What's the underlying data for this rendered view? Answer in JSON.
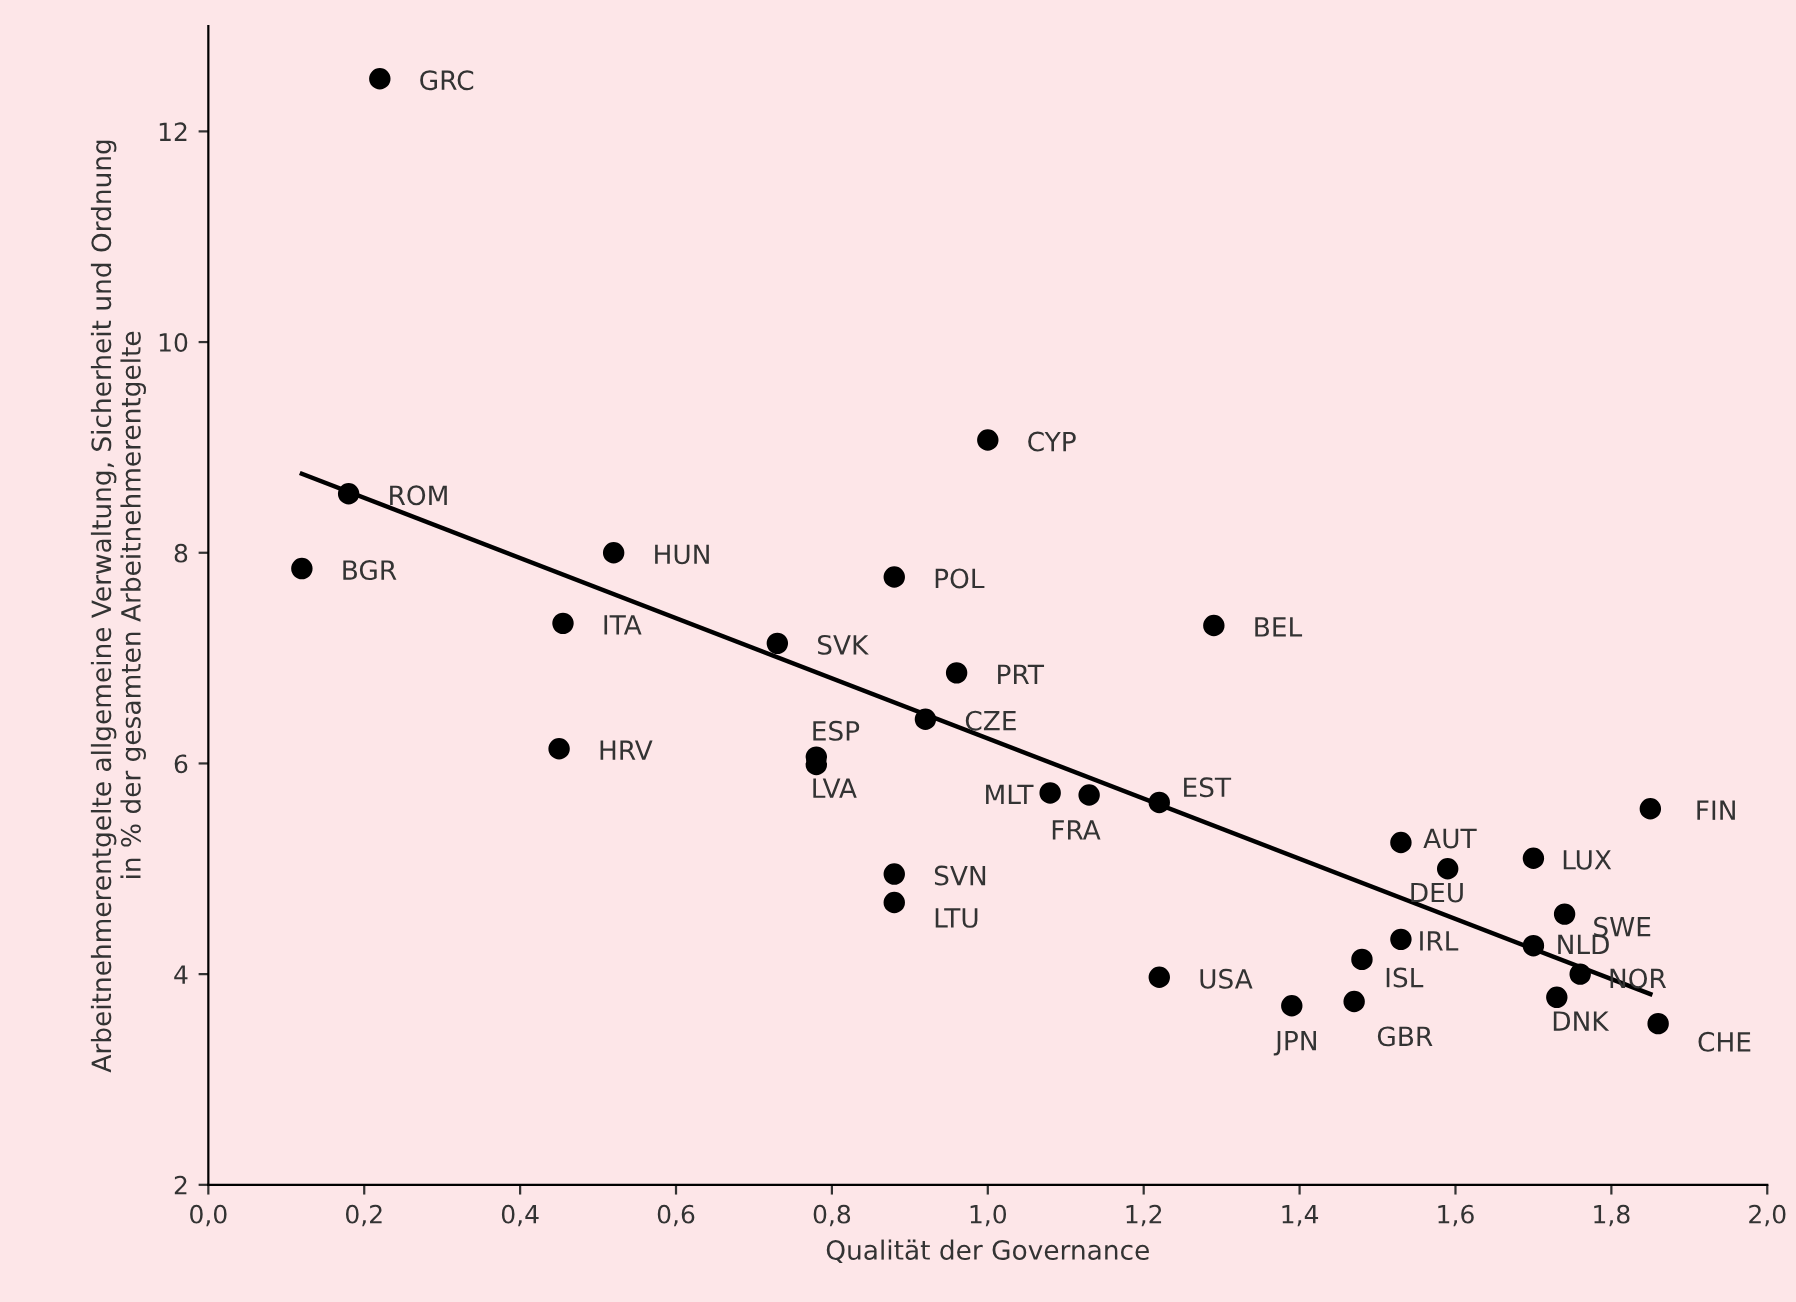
{
  "chart_data": {
    "type": "scatter",
    "xlabel": "Qualität der Governance",
    "ylabel": "Arbeitnehmerentgelte allgemeine Verwaltung, Sicherheit und Ordnung\nin % der gesamten Arbeitnehmerentgelte",
    "xlim": [
      0,
      2
    ],
    "xticks": [
      {
        "value": 0,
        "label": "0,0"
      },
      {
        "value": 0.2,
        "label": "0,2"
      },
      {
        "value": 0.4,
        "label": "0,4"
      },
      {
        "value": 0.6,
        "label": "0,6"
      },
      {
        "value": 0.8,
        "label": "0,8"
      },
      {
        "value": 1.0,
        "label": "1,0"
      },
      {
        "value": 1.2,
        "label": "1,2"
      },
      {
        "value": 1.4,
        "label": "1,4"
      },
      {
        "value": 1.6,
        "label": "1,6"
      },
      {
        "value": 1.8,
        "label": "1,8"
      },
      {
        "value": 2.0,
        "label": "2,0"
      }
    ],
    "ylim": [
      2,
      13
    ],
    "yticks": [
      2,
      4,
      6,
      8,
      10,
      12
    ],
    "grid": false,
    "series": [
      {
        "marker": "circle",
        "color": "#000000",
        "x": [
          0.22,
          0.18,
          0.12,
          0.52,
          0.88,
          0.73,
          0.96,
          0.92,
          1.29,
          1.0,
          0.45,
          0.455,
          0.78,
          0.78,
          1.08,
          1.13,
          1.22,
          0.88,
          0.88,
          1.22,
          1.39,
          1.47,
          1.48,
          1.53,
          1.53,
          1.59,
          1.7,
          1.74,
          1.7,
          1.76,
          1.73,
          1.85,
          1.86
        ],
        "values": [
          12.5,
          8.56,
          7.85,
          8.0,
          7.77,
          7.14,
          6.86,
          6.42,
          7.31,
          9.07,
          6.14,
          7.33,
          6.06,
          5.99,
          5.72,
          5.7,
          5.63,
          4.95,
          4.68,
          3.97,
          3.7,
          3.74,
          4.14,
          4.33,
          5.25,
          5.0,
          5.1,
          4.57,
          4.27,
          4.0,
          3.78,
          5.57,
          3.53
        ]
      },
      {
        "type": "line",
        "color": "#000000",
        "x": [
          0.12,
          1.85
        ],
        "values": [
          8.75,
          3.81
        ]
      }
    ],
    "annotations": [
      {
        "text": "GRC",
        "x": 0.22,
        "y": 12.5
      },
      {
        "text": "ROM",
        "x": 0.18,
        "y": 8.56
      },
      {
        "text": "BGR",
        "x": 0.12,
        "y": 7.85
      },
      {
        "text": "HUN",
        "x": 0.52,
        "y": 8.0
      },
      {
        "text": "POL",
        "x": 0.88,
        "y": 7.77
      },
      {
        "text": "SVK",
        "x": 0.73,
        "y": 7.14
      },
      {
        "text": "PRT",
        "x": 0.96,
        "y": 6.86
      },
      {
        "text": "CZE",
        "x": 0.92,
        "y": 6.42
      },
      {
        "text": "BEL",
        "x": 1.29,
        "y": 7.31
      },
      {
        "text": "CYP",
        "x": 1.0,
        "y": 9.07
      },
      {
        "text": "HRV",
        "x": 0.45,
        "y": 6.14
      },
      {
        "text": "ITA",
        "x": 0.455,
        "y": 7.33
      },
      {
        "text": "ESP",
        "x": 0.78,
        "y": 6.06
      },
      {
        "text": "LVA",
        "x": 0.78,
        "y": 5.99
      },
      {
        "text": "MLT",
        "x": 1.08,
        "y": 5.72
      },
      {
        "text": "FRA",
        "x": 1.13,
        "y": 5.7
      },
      {
        "text": "EST",
        "x": 1.22,
        "y": 5.63
      },
      {
        "text": "SVN",
        "x": 0.88,
        "y": 4.95
      },
      {
        "text": "LTU",
        "x": 0.88,
        "y": 4.68
      },
      {
        "text": "USA",
        "x": 1.22,
        "y": 3.97
      },
      {
        "text": "JPN",
        "x": 1.39,
        "y": 3.7
      },
      {
        "text": "GBR",
        "x": 1.47,
        "y": 3.74
      },
      {
        "text": "ISL",
        "x": 1.48,
        "y": 4.14
      },
      {
        "text": "IRL",
        "x": 1.53,
        "y": 4.33
      },
      {
        "text": "AUT",
        "x": 1.53,
        "y": 5.25
      },
      {
        "text": "DEU",
        "x": 1.59,
        "y": 5.0
      },
      {
        "text": "LUX",
        "x": 1.7,
        "y": 5.1
      },
      {
        "text": "SWE",
        "x": 1.74,
        "y": 4.57
      },
      {
        "text": "NLD",
        "x": 1.7,
        "y": 4.27
      },
      {
        "text": "NOR",
        "x": 1.76,
        "y": 4.0
      },
      {
        "text": "DNK",
        "x": 1.73,
        "y": 3.78
      },
      {
        "text": "FIN",
        "x": 1.85,
        "y": 5.57
      },
      {
        "text": "CHE",
        "x": 1.86,
        "y": 3.53
      }
    ]
  }
}
